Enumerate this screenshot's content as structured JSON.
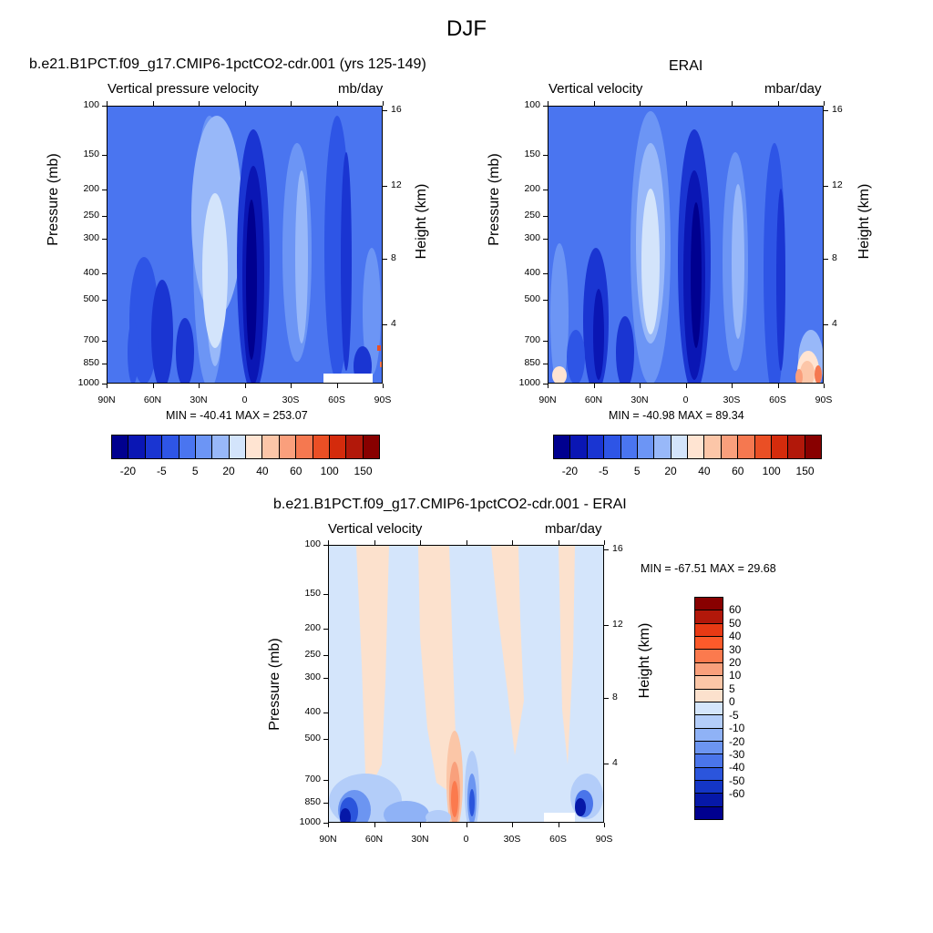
{
  "title": "DJF",
  "panels": {
    "model": {
      "title": "b.e21.B1PCT.f09_g17.CMIP6-1pctCO2-cdr.001 (yrs 125-149)",
      "left_label": "Vertical pressure velocity",
      "right_label": "mb/day",
      "minmax": "MIN = -40.41  MAX = 253.07"
    },
    "obs": {
      "title": "ERAI",
      "left_label": "Vertical velocity",
      "right_label": "mbar/day",
      "minmax": "MIN = -40.98  MAX =  89.34"
    },
    "diff": {
      "title": "b.e21.B1PCT.f09_g17.CMIP6-1pctCO2-cdr.001 - ERAI",
      "left_label": "Vertical velocity",
      "right_label": "mbar/day",
      "minmax": "MIN = -67.51  MAX =  29.68"
    }
  },
  "axes": {
    "ylabel": "Pressure (mb)",
    "y2label": "Height (km)",
    "pressure_ticks": [
      "100",
      "150",
      "200",
      "250",
      "300",
      "400",
      "500",
      "700",
      "850",
      "1000"
    ],
    "height_ticks": [
      "16",
      "12",
      "8",
      "4"
    ],
    "lat_ticks": [
      "90N",
      "60N",
      "30N",
      "0",
      "30S",
      "60S",
      "90S"
    ]
  },
  "colorbars": {
    "top_colors": [
      "#00008f",
      "#0a16b4",
      "#1a35d2",
      "#2e55e6",
      "#4a75f0",
      "#6c95f5",
      "#98b8f9",
      "#d3e4fb",
      "#ffe4d2",
      "#fcc6a8",
      "#fa9f7c",
      "#f57850",
      "#ea4f25",
      "#d42b0c",
      "#b2180a",
      "#880000"
    ],
    "top_labels": [
      "-20",
      "-5",
      "5",
      "20",
      "40",
      "60",
      "100",
      "150"
    ],
    "diff_colors": [
      "#880000",
      "#b2180a",
      "#e83a14",
      "#fc5a2a",
      "#fb7a4e",
      "#f9a07c",
      "#fbc6a7",
      "#fce1cd",
      "#d4e5fb",
      "#b3cdf9",
      "#8fb2f6",
      "#6c95f1",
      "#4a75ea",
      "#2b55dc",
      "#1436c6",
      "#0618a8",
      "#00008f"
    ],
    "diff_labels": [
      "60",
      "50",
      "40",
      "30",
      "20",
      "10",
      "5",
      "0",
      "-5",
      "-10",
      "-20",
      "-30",
      "-40",
      "-50",
      "-60"
    ]
  },
  "chart_data": [
    {
      "type": "heatmap",
      "name": "model",
      "title": "b.e21.B1PCT.f09_g17.CMIP6-1pctCO2-cdr.001 (yrs 125-149)",
      "variable": "Vertical pressure velocity",
      "units": "mb/day",
      "xlabel": "",
      "ylabel": "Pressure (mb)",
      "y2label": "Height (km)",
      "x_range": [
        "90N",
        "90S"
      ],
      "y_range": [
        100,
        1000
      ],
      "y_scale": "log",
      "min": -40.41,
      "max": 253.07
    },
    {
      "type": "heatmap",
      "name": "obs",
      "title": "ERAI",
      "variable": "Vertical velocity",
      "units": "mbar/day",
      "ylabel": "Pressure (mb)",
      "y2label": "Height (km)",
      "x_range": [
        "90N",
        "90S"
      ],
      "y_range": [
        100,
        1000
      ],
      "y_scale": "log",
      "min": -40.98,
      "max": 89.34
    },
    {
      "type": "heatmap",
      "name": "diff",
      "title": "b.e21.B1PCT.f09_g17.CMIP6-1pctCO2-cdr.001 - ERAI",
      "variable": "Vertical velocity",
      "units": "mbar/day",
      "ylabel": "Pressure (mb)",
      "y2label": "Height (km)",
      "x_range": [
        "90N",
        "90S"
      ],
      "y_range": [
        100,
        1000
      ],
      "y_scale": "log",
      "min": -67.51,
      "max": 29.68
    }
  ]
}
